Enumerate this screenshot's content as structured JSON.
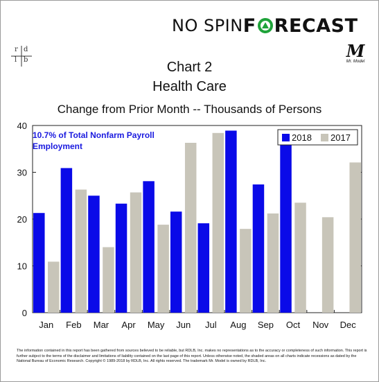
{
  "brand": {
    "pre": "NO SPIN ",
    "post": "RECAST"
  },
  "logo_rdlb": {
    "r": "r",
    "d": "d",
    "l": "l",
    "b": "b"
  },
  "logo_mrmodel": {
    "m": "M",
    "text": "Mr. Model"
  },
  "chart_data": {
    "type": "bar",
    "title": "Chart 2",
    "subtitle": "Health Care",
    "ylabel": "Change from Prior Month -- Thousands of Persons",
    "annotation": "10.7% of Total Nonfarm Payroll Employment",
    "categories": [
      "Jan",
      "Feb",
      "Mar",
      "Apr",
      "May",
      "Jun",
      "Jul",
      "Aug",
      "Sep",
      "Oct",
      "Nov",
      "Dec"
    ],
    "series": [
      {
        "name": "2018",
        "color": "#0a0ae8",
        "values": [
          21.3,
          30.9,
          25.0,
          23.3,
          28.1,
          21.6,
          19.1,
          38.9,
          27.4,
          35.8,
          null,
          null
        ]
      },
      {
        "name": "2017",
        "color": "#c8c5b9",
        "values": [
          10.9,
          26.3,
          14.0,
          25.7,
          18.8,
          36.3,
          38.4,
          17.9,
          21.2,
          23.5,
          20.4,
          32.1
        ]
      }
    ],
    "ylim": [
      0,
      40
    ],
    "yticks": [
      0,
      10,
      20,
      30,
      40
    ],
    "legend": "top-right",
    "grid": false
  },
  "footnote": "The information contained in this report has been gathered from sources believed to be reliable, but RDLB, Inc. makes no representations as to the accuracy or completeness of such information. This report is further subject to the terms of the disclaimer and limitations of liability contained on the last page of this report. Unless otherwise noted, the shaded areas on all charts indicate recessions as dated by the National Bureau of Economic Research. Copyright © 1989-2018 by RDLB, Inc. All rights reserved. The trademark Mr. Model is owned by RDLB, Inc."
}
